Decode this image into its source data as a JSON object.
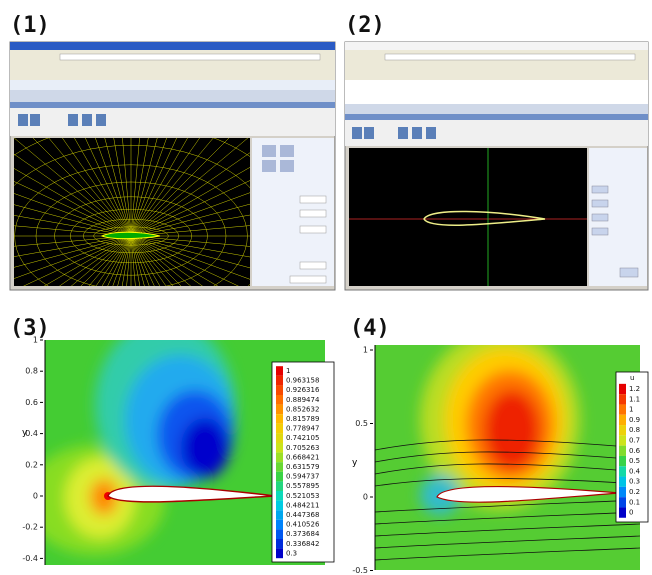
{
  "panels": [
    {
      "label": "(1)"
    },
    {
      "label": "(2)"
    },
    {
      "label": "(3)",
      "y_label": "y",
      "yticks": [
        "1",
        "0.8",
        "0.6",
        "0.4",
        "0.2",
        "0",
        "-0.2",
        "-0.4"
      ],
      "legend": [
        "1",
        "0.963158",
        "0.926316",
        "0.889474",
        "0.852632",
        "0.815789",
        "0.778947",
        "0.742105",
        "0.705263",
        "0.668421",
        "0.631579",
        "0.594737",
        "0.557895",
        "0.521053",
        "0.484211",
        "0.447368",
        "0.410526",
        "0.373684",
        "0.336842",
        "0.3"
      ]
    },
    {
      "label": "(4)",
      "y_label": "y",
      "legend_title": "u",
      "yticks": [
        "1",
        "0.5",
        "0",
        "-0.5"
      ],
      "legend": [
        "1.2",
        "1.1",
        "1",
        "0.9",
        "0.8",
        "0.7",
        "0.6",
        "0.5",
        "0.4",
        "0.3",
        "0.2",
        "0.1",
        "0"
      ]
    }
  ]
}
